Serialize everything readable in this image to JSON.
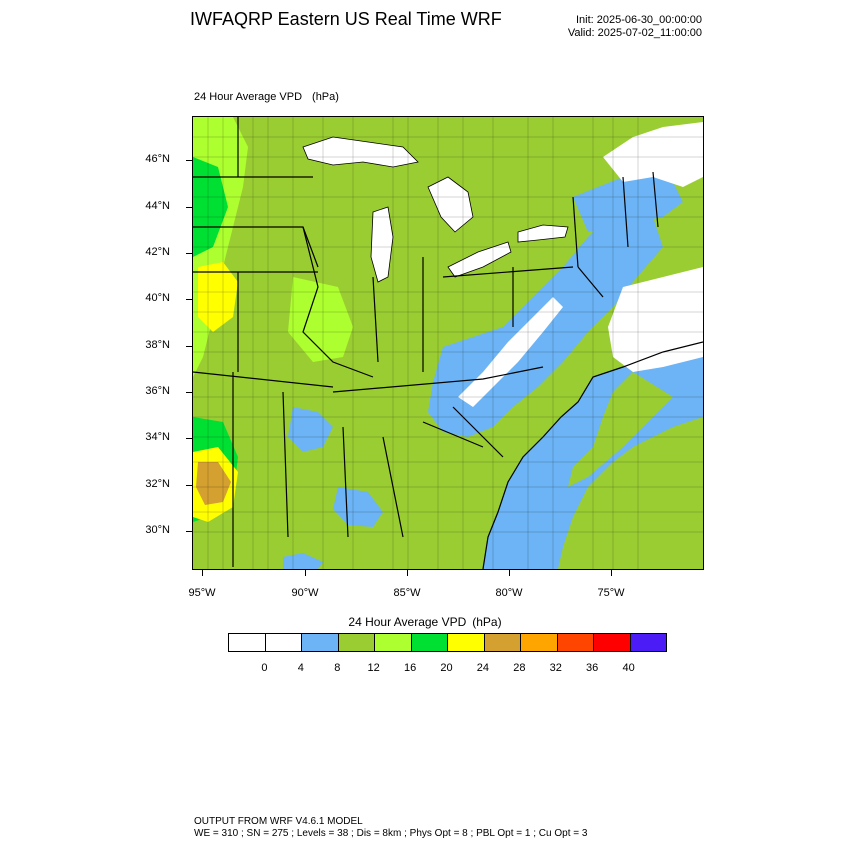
{
  "header": {
    "title": "IWFAQRP Eastern US Real Time WRF",
    "init": "Init: 2025-06-30_00:00:00",
    "valid": "Valid: 2025-07-02_11:00:00"
  },
  "plot": {
    "title": "24 Hour Average VPD",
    "units": "(hPa)"
  },
  "map": {
    "lat_labels": [
      "46°N",
      "44°N",
      "42°N",
      "40°N",
      "38°N",
      "36°N",
      "34°N",
      "32°N",
      "30°N"
    ],
    "lon_labels": [
      "95°W",
      "90°W",
      "85°W",
      "80°W",
      "75°W"
    ],
    "lat_values": [
      46,
      44,
      42,
      40,
      38,
      36,
      34,
      32,
      30
    ],
    "lon_values": [
      -95,
      -90,
      -85,
      -80,
      -75
    ],
    "colors": {
      "water": "#6cb4f5",
      "lake": "#ffffff",
      "bg_canada": "#9acd32",
      "very_low": "#ffffff",
      "low": "#6cb4f5",
      "mid": "#9acd32",
      "mid_high": "#adff2f",
      "high": "#00e032",
      "very_high": "#ffff00",
      "extreme": "#d4a030"
    }
  },
  "colorbar": {
    "title": "24 Hour Average VPD",
    "units": "(hPa)",
    "colors": [
      "#ffffff",
      "#ffffff",
      "#6cb4f5",
      "#9acd32",
      "#adff2f",
      "#00e032",
      "#ffff00",
      "#d4a030",
      "#ffa500",
      "#ff4500",
      "#ff0000",
      "#4b1cf5"
    ],
    "labels": [
      "0",
      "4",
      "8",
      "12",
      "16",
      "20",
      "24",
      "28",
      "32",
      "36",
      "40"
    ]
  },
  "footer": {
    "line1": "OUTPUT FROM WRF V4.6.1 MODEL",
    "line2": "WE = 310 ; SN = 275 ; Levels = 38 ; Dis = 8km ; Phys Opt = 8 ; PBL Opt = 1 ; Cu Opt = 3"
  }
}
